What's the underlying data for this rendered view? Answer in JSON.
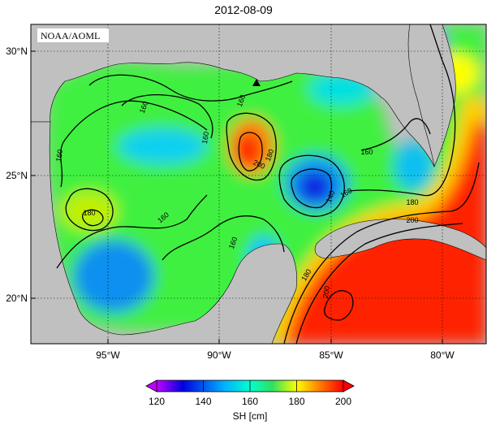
{
  "title": "2012-08-09",
  "credit": "NOAA/AOML",
  "map": {
    "lat_labels": [
      "30°N",
      "25°N",
      "20°N"
    ],
    "lon_labels": [
      "95°W",
      "90°W",
      "85°W",
      "80°W"
    ],
    "lat_range": [
      18,
      31
    ],
    "lon_range": [
      -98.5,
      -77.8
    ],
    "grid": true,
    "marker": "triangle",
    "marker_location": {
      "lon": -88.5,
      "lat": 28.8
    },
    "contour_labels": [
      "160",
      "160",
      "160",
      "160",
      "160",
      "160",
      "160",
      "160",
      "180",
      "180",
      "180",
      "180",
      "200",
      "200",
      "200",
      "140"
    ]
  },
  "colorbar": {
    "label": "SH [cm]",
    "ticks": [
      "120",
      "140",
      "160",
      "180",
      "200"
    ],
    "range": [
      120,
      200
    ],
    "colors": [
      "#c000ff",
      "#0000e0",
      "#00b0ff",
      "#00ffd0",
      "#30e060",
      "#ffff00",
      "#ff8000",
      "#ff0000"
    ]
  }
}
